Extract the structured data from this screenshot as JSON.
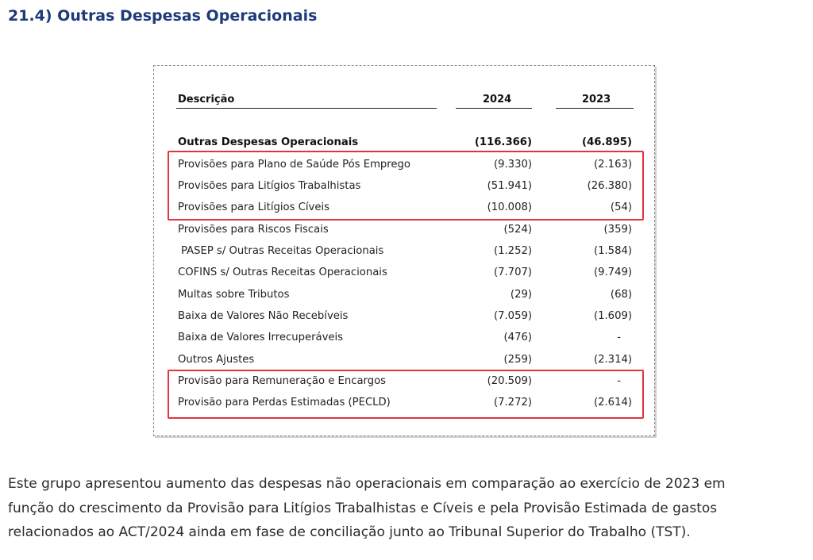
{
  "heading": "21.4) Outras Despesas Operacionais",
  "table": {
    "col_desc": "Descrição",
    "col_2024": "2024",
    "col_2023": "2023",
    "rows": [
      {
        "label": "Outras Despesas Operacionais",
        "v2024": "(116.366)",
        "v2023": "(46.895)"
      },
      {
        "label": "Provisões para Plano de Saúde Pós Emprego",
        "v2024": "(9.330)",
        "v2023": "(2.163)"
      },
      {
        "label": "Provisões para Litígios Trabalhistas",
        "v2024": "(51.941)",
        "v2023": "(26.380)"
      },
      {
        "label": "Provisões para Litígios Cíveis",
        "v2024": "(10.008)",
        "v2023": "(54)"
      },
      {
        "label": "Provisões para Riscos Fiscais",
        "v2024": "(524)",
        "v2023": "(359)"
      },
      {
        "label": "PASEP s/ Outras Receitas Operacionais",
        "v2024": "(1.252)",
        "v2023": "(1.584)"
      },
      {
        "label": "COFINS s/ Outras Receitas Operacionais",
        "v2024": "(7.707)",
        "v2023": "(9.749)"
      },
      {
        "label": "Multas sobre Tributos",
        "v2024": "(29)",
        "v2023": "(68)"
      },
      {
        "label": "Baixa de Valores Não Recebíveis",
        "v2024": "(7.059)",
        "v2023": "(1.609)"
      },
      {
        "label": "Baixa de Valores Irrecuperáveis",
        "v2024": "(476)",
        "v2023": "-"
      },
      {
        "label": "Outros Ajustes",
        "v2024": "(259)",
        "v2023": "(2.314)"
      },
      {
        "label": "Provisão para Remuneração e Encargos",
        "v2024": "(20.509)",
        "v2023": "-"
      },
      {
        "label": "Provisão para Perdas Estimadas (PECLD)",
        "v2024": "(7.272)",
        "v2023": "(2.614)"
      }
    ]
  },
  "paragraph": {
    "line1": "Este grupo apresentou aumento das despesas não operacionais em comparação ao exercício de 2023 em",
    "line2": "função do crescimento da Provisão para Litígios Trabalhistas e Cíveis e pela Provisão Estimada de gastos",
    "line3": "relacionados ao ACT/2024 ainda em fase de conciliação junto ao Tribunal Superior do Trabalho (TST)."
  },
  "colors": {
    "heading": "#1f3a7a",
    "highlight": "#e0343f"
  }
}
